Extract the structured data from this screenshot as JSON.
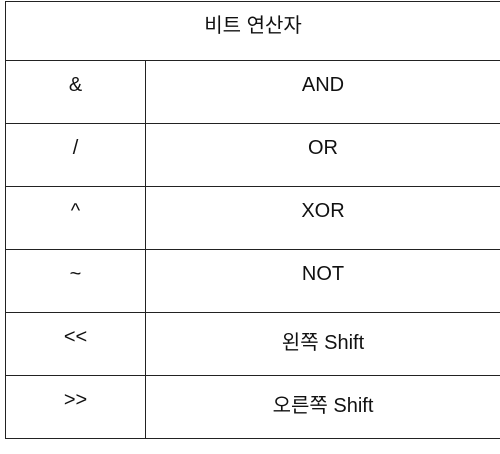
{
  "table": {
    "title": "비트 연산자",
    "rows": [
      {
        "operator": "&",
        "name": "AND"
      },
      {
        "operator": "/",
        "name": "OR"
      },
      {
        "operator": "^",
        "name": "XOR"
      },
      {
        "operator": "~",
        "name": "NOT"
      },
      {
        "operator": "<<",
        "name": "왼쪽 Shift"
      },
      {
        "operator": ">>",
        "name": "오른쪽 Shift"
      }
    ]
  }
}
